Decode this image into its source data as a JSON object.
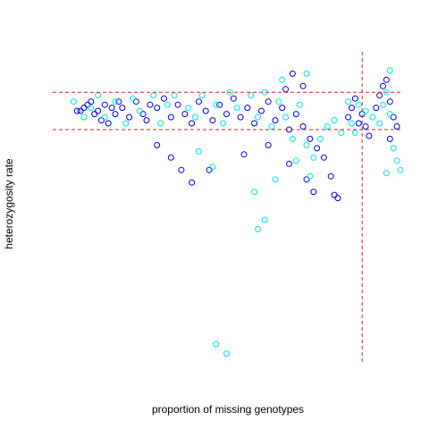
{
  "chart_data": {
    "type": "scatter",
    "title": "",
    "xlabel": "proportion of missing genotypes",
    "ylabel": "heterozygosity rate",
    "xlim": [
      0,
      1
    ],
    "ylim": [
      0,
      1
    ],
    "grid": false,
    "legend": "none",
    "colors": {
      "series_a": "#0000ee",
      "series_b": "#00e5ee",
      "threshold_lines": "#cd2626"
    },
    "thresholds": {
      "het_upper": 0.87,
      "het_lower": 0.75,
      "missing": 0.89
    },
    "series": [
      {
        "values": [
          [
            0.07,
            0.81
          ],
          [
            0.08,
            0.81
          ],
          [
            0.09,
            0.82
          ],
          [
            0.1,
            0.83
          ],
          [
            0.11,
            0.84
          ],
          [
            0.12,
            0.8
          ],
          [
            0.13,
            0.81
          ],
          [
            0.14,
            0.78
          ],
          [
            0.15,
            0.83
          ],
          [
            0.16,
            0.77
          ],
          [
            0.17,
            0.82
          ],
          [
            0.18,
            0.8
          ],
          [
            0.19,
            0.84
          ],
          [
            0.2,
            0.82
          ],
          [
            0.22,
            0.79
          ],
          [
            0.24,
            0.84
          ],
          [
            0.26,
            0.8
          ],
          [
            0.27,
            0.78
          ],
          [
            0.28,
            0.83
          ],
          [
            0.3,
            0.82
          ],
          [
            0.32,
            0.85
          ],
          [
            0.34,
            0.79
          ],
          [
            0.36,
            0.83
          ],
          [
            0.38,
            0.8
          ],
          [
            0.4,
            0.77
          ],
          [
            0.42,
            0.84
          ],
          [
            0.44,
            0.81
          ],
          [
            0.46,
            0.78
          ],
          [
            0.48,
            0.83
          ],
          [
            0.5,
            0.8
          ],
          [
            0.52,
            0.85
          ],
          [
            0.54,
            0.79
          ],
          [
            0.56,
            0.82
          ],
          [
            0.58,
            0.77
          ],
          [
            0.6,
            0.81
          ],
          [
            0.62,
            0.84
          ],
          [
            0.64,
            0.78
          ],
          [
            0.66,
            0.82
          ],
          [
            0.68,
            0.75
          ],
          [
            0.7,
            0.8
          ],
          [
            0.72,
            0.76
          ],
          [
            0.74,
            0.72
          ],
          [
            0.76,
            0.69
          ],
          [
            0.78,
            0.66
          ],
          [
            0.8,
            0.6
          ],
          [
            0.81,
            0.54
          ],
          [
            0.82,
            0.53
          ],
          [
            0.3,
            0.7
          ],
          [
            0.34,
            0.66
          ],
          [
            0.37,
            0.62
          ],
          [
            0.4,
            0.58
          ],
          [
            0.45,
            0.62
          ],
          [
            0.55,
            0.67
          ],
          [
            0.62,
            0.7
          ],
          [
            0.68,
            0.64
          ],
          [
            0.73,
            0.59
          ],
          [
            0.75,
            0.55
          ],
          [
            0.85,
            0.79
          ],
          [
            0.86,
            0.82
          ],
          [
            0.87,
            0.85
          ],
          [
            0.88,
            0.77
          ],
          [
            0.89,
            0.8
          ],
          [
            0.9,
            0.76
          ],
          [
            0.91,
            0.73
          ],
          [
            0.93,
            0.82
          ],
          [
            0.94,
            0.86
          ],
          [
            0.95,
            0.89
          ],
          [
            0.96,
            0.91
          ],
          [
            0.97,
            0.84
          ],
          [
            0.98,
            0.79
          ],
          [
            0.99,
            0.76
          ],
          [
            0.97,
            0.72
          ],
          [
            0.67,
            0.88
          ],
          [
            0.72,
            0.89
          ],
          [
            0.69,
            0.93
          ]
        ]
      },
      {
        "values": [
          [
            0.06,
            0.84
          ],
          [
            0.09,
            0.79
          ],
          [
            0.11,
            0.82
          ],
          [
            0.13,
            0.86
          ],
          [
            0.15,
            0.79
          ],
          [
            0.18,
            0.84
          ],
          [
            0.21,
            0.77
          ],
          [
            0.23,
            0.85
          ],
          [
            0.25,
            0.81
          ],
          [
            0.29,
            0.86
          ],
          [
            0.31,
            0.77
          ],
          [
            0.33,
            0.83
          ],
          [
            0.35,
            0.86
          ],
          [
            0.39,
            0.82
          ],
          [
            0.41,
            0.79
          ],
          [
            0.43,
            0.86
          ],
          [
            0.47,
            0.83
          ],
          [
            0.49,
            0.77
          ],
          [
            0.51,
            0.87
          ],
          [
            0.53,
            0.82
          ],
          [
            0.57,
            0.86
          ],
          [
            0.59,
            0.79
          ],
          [
            0.61,
            0.87
          ],
          [
            0.63,
            0.76
          ],
          [
            0.65,
            0.84
          ],
          [
            0.67,
            0.79
          ],
          [
            0.69,
            0.72
          ],
          [
            0.71,
            0.83
          ],
          [
            0.73,
            0.7
          ],
          [
            0.75,
            0.66
          ],
          [
            0.77,
            0.72
          ],
          [
            0.79,
            0.76
          ],
          [
            0.81,
            0.78
          ],
          [
            0.83,
            0.74
          ],
          [
            0.85,
            0.84
          ],
          [
            0.86,
            0.77
          ],
          [
            0.87,
            0.74
          ],
          [
            0.88,
            0.83
          ],
          [
            0.9,
            0.81
          ],
          [
            0.92,
            0.79
          ],
          [
            0.94,
            0.77
          ],
          [
            0.95,
            0.83
          ],
          [
            0.96,
            0.87
          ],
          [
            0.97,
            0.8
          ],
          [
            0.98,
            0.69
          ],
          [
            0.99,
            0.65
          ],
          [
            1.0,
            0.62
          ],
          [
            0.96,
            0.61
          ],
          [
            0.42,
            0.68
          ],
          [
            0.46,
            0.63
          ],
          [
            0.58,
            0.55
          ],
          [
            0.64,
            0.59
          ],
          [
            0.7,
            0.65
          ],
          [
            0.74,
            0.6
          ],
          [
            0.61,
            0.46
          ],
          [
            0.59,
            0.43
          ],
          [
            0.47,
            0.06
          ],
          [
            0.5,
            0.03
          ],
          [
            0.66,
            0.91
          ],
          [
            0.73,
            0.93
          ],
          [
            0.97,
            0.94
          ]
        ]
      }
    ]
  }
}
